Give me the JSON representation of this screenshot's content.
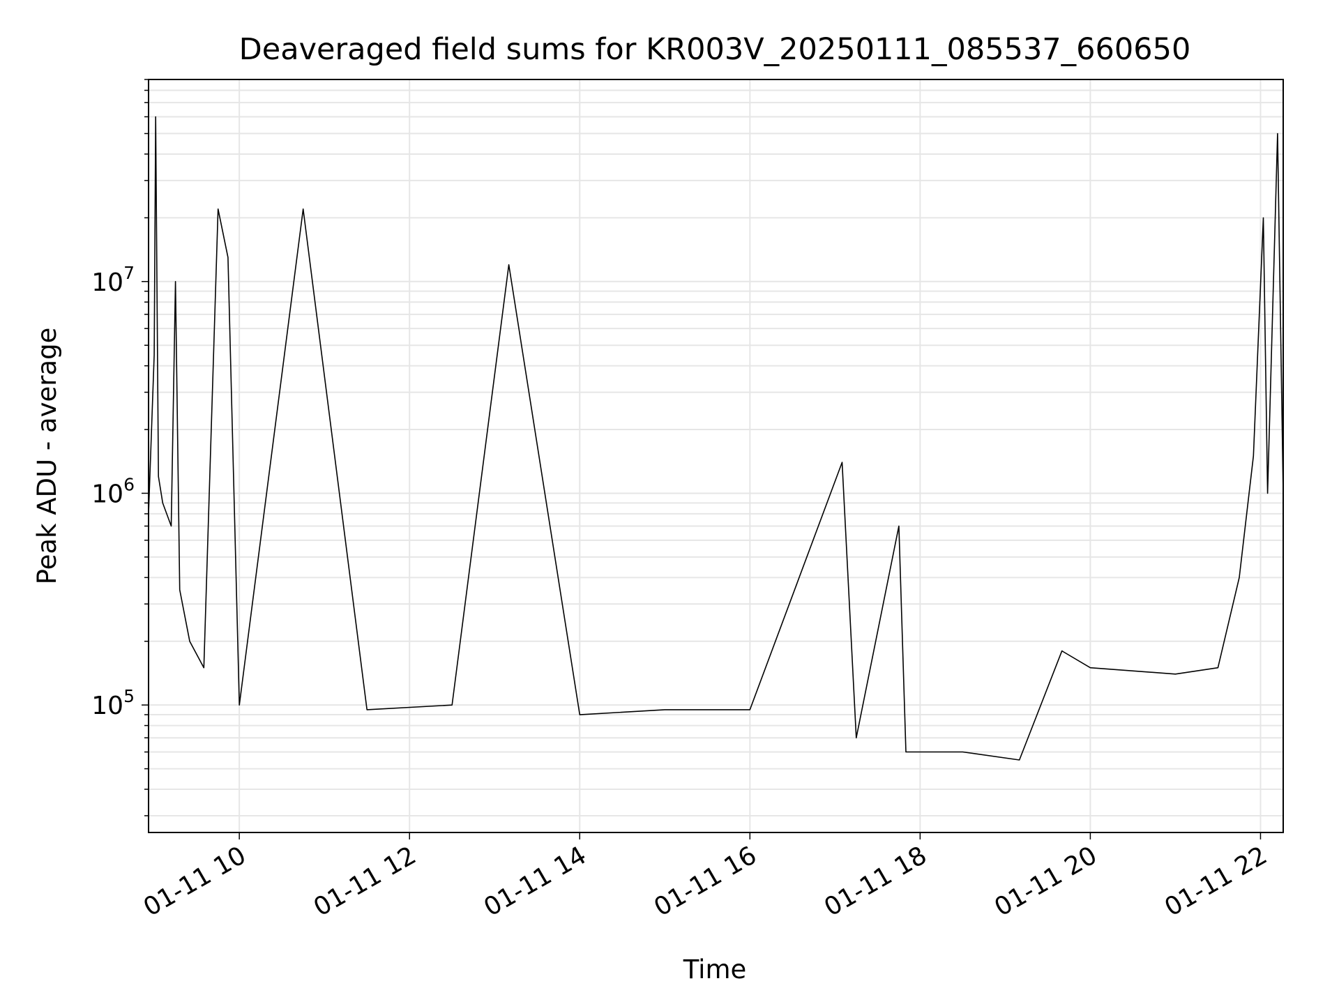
{
  "chart_data": {
    "type": "line",
    "title": "Deaveraged field sums for KR003V_20250111_085537_660650",
    "xlabel": "Time",
    "ylabel": "Peak ADU - average",
    "yscale": "log",
    "xlim": [
      "2025-01-11 08:56",
      "2025-01-11 22:16"
    ],
    "ylim": [
      25000,
      90000000
    ],
    "grid": true,
    "line_color": "#000000",
    "x_ticks": [
      {
        "label": "01-11 10",
        "time": "2025-01-11 10:00"
      },
      {
        "label": "01-11 12",
        "time": "2025-01-11 12:00"
      },
      {
        "label": "01-11 14",
        "time": "2025-01-11 14:00"
      },
      {
        "label": "01-11 16",
        "time": "2025-01-11 16:00"
      },
      {
        "label": "01-11 18",
        "time": "2025-01-11 18:00"
      },
      {
        "label": "01-11 20",
        "time": "2025-01-11 20:00"
      },
      {
        "label": "01-11 22",
        "time": "2025-01-11 22:00"
      }
    ],
    "y_ticks": [
      {
        "base": "10",
        "exp": "5",
        "value": 100000
      },
      {
        "base": "10",
        "exp": "6",
        "value": 1000000
      },
      {
        "base": "10",
        "exp": "7",
        "value": 10000000
      }
    ],
    "series": [
      {
        "points": [
          [
            "2025-01-11 08:56",
            800000
          ],
          [
            "2025-01-11 09:00",
            4500000
          ],
          [
            "2025-01-11 09:01",
            60000000
          ],
          [
            "2025-01-11 09:03",
            1200000
          ],
          [
            "2025-01-11 09:06",
            900000
          ],
          [
            "2025-01-11 09:12",
            700000
          ],
          [
            "2025-01-11 09:15",
            10000000
          ],
          [
            "2025-01-11 09:18",
            350000
          ],
          [
            "2025-01-11 09:25",
            200000
          ],
          [
            "2025-01-11 09:35",
            150000
          ],
          [
            "2025-01-11 09:45",
            22000000
          ],
          [
            "2025-01-11 09:52",
            13000000
          ],
          [
            "2025-01-11 10:00",
            100000
          ],
          [
            "2025-01-11 10:45",
            22000000
          ],
          [
            "2025-01-11 11:30",
            95000
          ],
          [
            "2025-01-11 12:30",
            100000
          ],
          [
            "2025-01-11 13:10",
            12000000
          ],
          [
            "2025-01-11 14:00",
            90000
          ],
          [
            "2025-01-11 15:00",
            95000
          ],
          [
            "2025-01-11 16:00",
            95000
          ],
          [
            "2025-01-11 17:05",
            1400000
          ],
          [
            "2025-01-11 17:15",
            70000
          ],
          [
            "2025-01-11 17:45",
            700000
          ],
          [
            "2025-01-11 17:50",
            60000
          ],
          [
            "2025-01-11 18:30",
            60000
          ],
          [
            "2025-01-11 19:10",
            55000
          ],
          [
            "2025-01-11 19:40",
            180000
          ],
          [
            "2025-01-11 20:00",
            150000
          ],
          [
            "2025-01-11 21:00",
            140000
          ],
          [
            "2025-01-11 21:30",
            150000
          ],
          [
            "2025-01-11 21:45",
            400000
          ],
          [
            "2025-01-11 21:55",
            1500000
          ],
          [
            "2025-01-11 22:02",
            20000000
          ],
          [
            "2025-01-11 22:05",
            1000000
          ],
          [
            "2025-01-11 22:12",
            50000000
          ],
          [
            "2025-01-11 22:16",
            1000000
          ]
        ]
      }
    ]
  }
}
